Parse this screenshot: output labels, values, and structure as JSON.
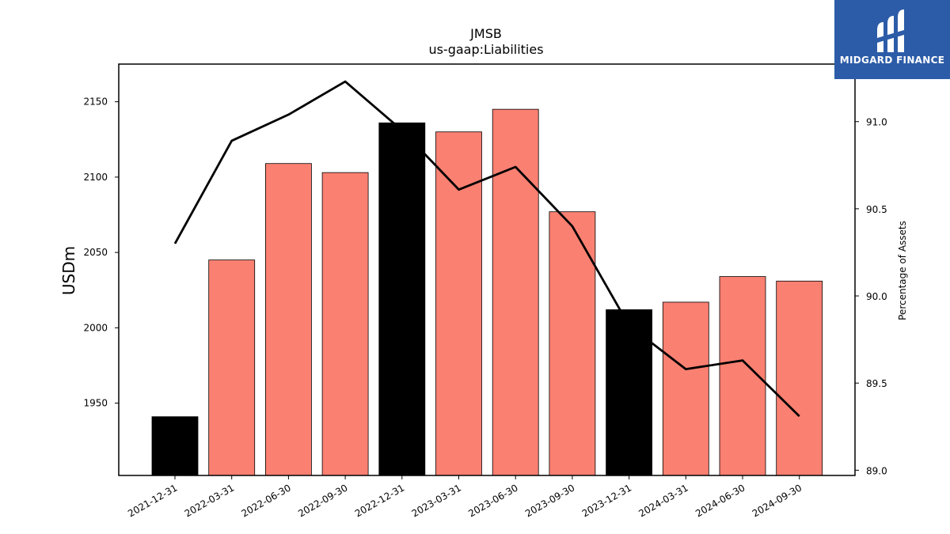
{
  "chart_data": {
    "type": "bar",
    "title": "JMSB",
    "subtitle": "us-gaap:Liabilities",
    "ylabel": "USDm",
    "y2label": "Percentage of Assets",
    "categories": [
      "2021-12-31",
      "2022-03-31",
      "2022-06-30",
      "2022-09-30",
      "2022-12-31",
      "2023-03-31",
      "2023-06-30",
      "2023-09-30",
      "2023-12-31",
      "2024-03-31",
      "2024-06-30",
      "2024-09-30"
    ],
    "series": [
      {
        "axis": "left",
        "type": "bar",
        "values": [
          1941,
          2045,
          2109,
          2103,
          2136,
          2130,
          2145,
          2077,
          2012,
          2017,
          2034,
          2031
        ],
        "colors": [
          "#000000",
          "#fa8072",
          "#fa8072",
          "#fa8072",
          "#000000",
          "#fa8072",
          "#fa8072",
          "#fa8072",
          "#000000",
          "#fa8072",
          "#fa8072",
          "#fa8072"
        ]
      },
      {
        "axis": "right",
        "type": "line",
        "color": "#000000",
        "values": [
          90.3,
          90.89,
          91.04,
          91.23,
          90.95,
          90.61,
          90.74,
          90.4,
          89.83,
          89.58,
          89.63,
          89.31
        ]
      }
    ],
    "ylim": [
      1902,
      2175
    ],
    "y2lim": [
      88.97,
      91.33
    ],
    "yticks": [
      "1950",
      "2000",
      "2050",
      "2100",
      "2150"
    ],
    "y2ticks": [
      "89.0",
      "89.5",
      "90.0",
      "90.5",
      "91.0"
    ]
  },
  "logo": {
    "brand": "MIDGARD FINANCE"
  }
}
